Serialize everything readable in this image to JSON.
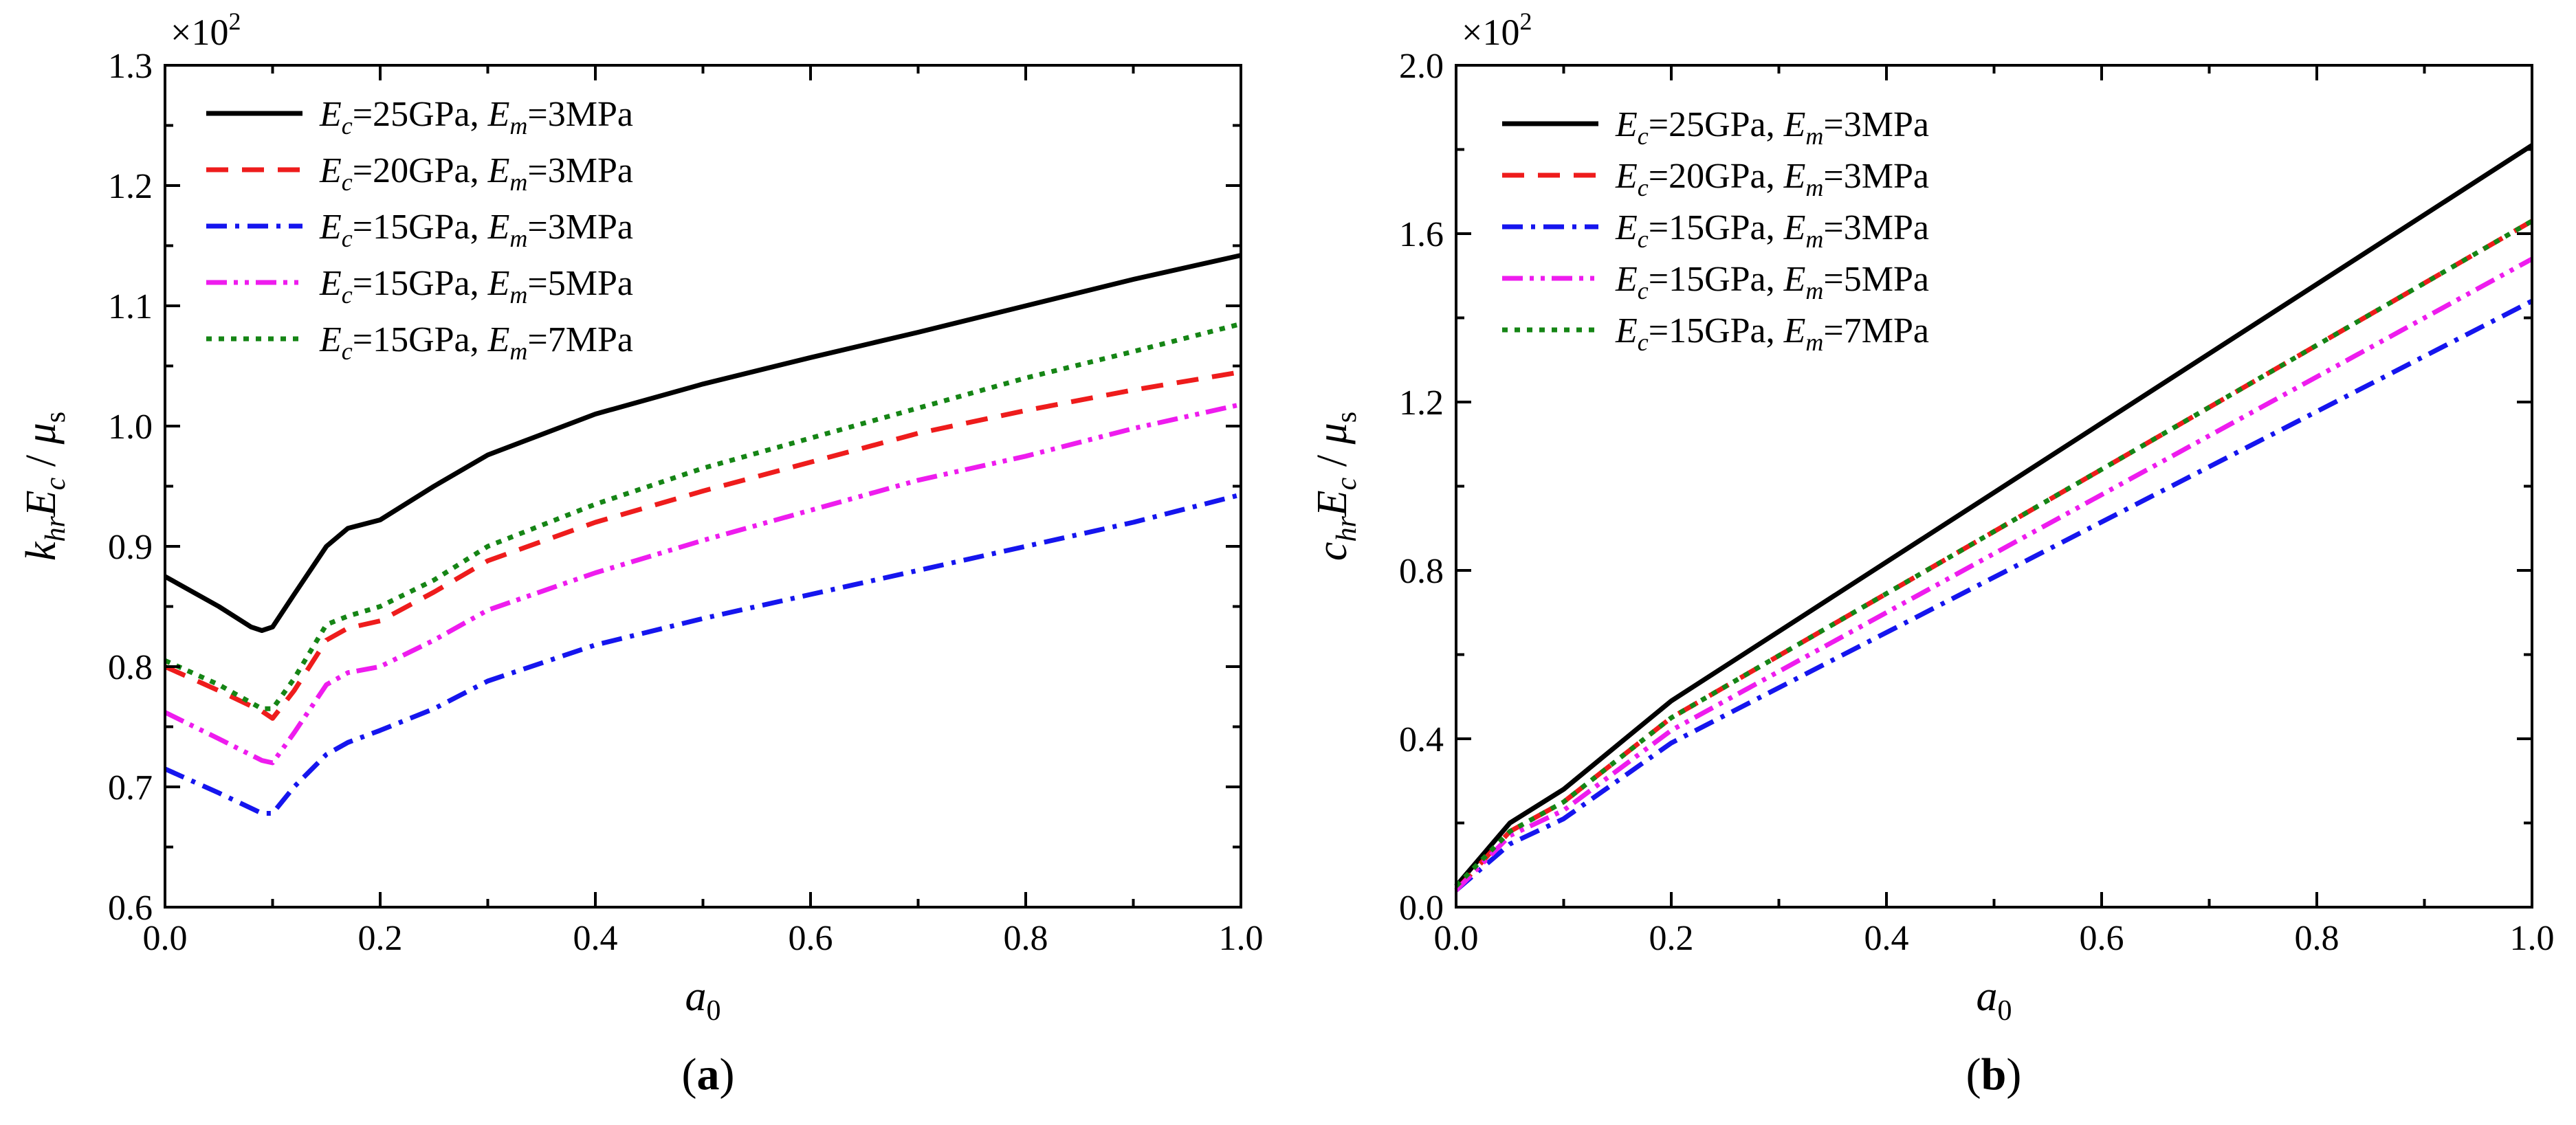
{
  "colors": {
    "black": "#000000",
    "red": "#ee1c1c",
    "blue": "#1515ee",
    "magenta": "#ee1cee",
    "green": "#158515"
  },
  "chart_data": [
    {
      "type": "line",
      "panel": "a",
      "caption": {
        "open": "(",
        "letter": "a",
        "close": ")"
      },
      "multiplier": {
        "base": "×10",
        "exp": "2"
      },
      "ylabel": {
        "k": "k",
        "k_sub": "hr",
        "e": "E",
        "e_sub": "c",
        "slash": " / ",
        "mu": "μ",
        "mu_sub": "s"
      },
      "xlabel": {
        "a": "a",
        "a_sub": "0"
      },
      "xlim": [
        0,
        1
      ],
      "ylim": [
        0.6,
        1.3
      ],
      "xticks": [
        0.0,
        0.2,
        0.4,
        0.6,
        0.8,
        1.0
      ],
      "xtick_labels": [
        "0.0",
        "0.2",
        "0.4",
        "0.6",
        "0.8",
        "1.0"
      ],
      "yticks": [
        0.6,
        0.7,
        0.8,
        0.9,
        1.0,
        1.1,
        1.2,
        1.3
      ],
      "ytick_labels": [
        "0.6",
        "0.7",
        "0.8",
        "0.9",
        "1.0",
        "1.1",
        "1.2",
        "1.3"
      ],
      "legend_position": "top-left",
      "series": [
        {
          "ec": "25GPa",
          "em": "3MPa",
          "color": "#000000",
          "dash": "",
          "x": [
            0,
            0.05,
            0.08,
            0.09,
            0.1,
            0.12,
            0.15,
            0.17,
            0.2,
            0.25,
            0.3,
            0.4,
            0.5,
            0.6,
            0.7,
            0.8,
            0.9,
            1.0
          ],
          "y": [
            0.875,
            0.85,
            0.833,
            0.83,
            0.833,
            0.86,
            0.9,
            0.915,
            0.922,
            0.95,
            0.976,
            1.01,
            1.035,
            1.057,
            1.078,
            1.1,
            1.122,
            1.142
          ]
        },
        {
          "ec": "20GPa",
          "em": "3MPa",
          "color": "#ee1c1c",
          "dash": "32 20",
          "x": [
            0,
            0.05,
            0.09,
            0.1,
            0.12,
            0.15,
            0.17,
            0.2,
            0.25,
            0.3,
            0.4,
            0.5,
            0.6,
            0.7,
            0.8,
            0.9,
            1.0
          ],
          "y": [
            0.8,
            0.78,
            0.763,
            0.757,
            0.78,
            0.822,
            0.832,
            0.838,
            0.862,
            0.888,
            0.92,
            0.946,
            0.97,
            0.994,
            1.013,
            1.03,
            1.045
          ]
        },
        {
          "ec": "15GPa",
          "em": "3MPa",
          "color": "#1515ee",
          "dash": "30 12 6 12",
          "x": [
            0,
            0.05,
            0.09,
            0.1,
            0.12,
            0.15,
            0.17,
            0.2,
            0.25,
            0.3,
            0.4,
            0.5,
            0.6,
            0.7,
            0.8,
            0.9,
            1.0
          ],
          "y": [
            0.715,
            0.695,
            0.678,
            0.678,
            0.7,
            0.727,
            0.737,
            0.747,
            0.765,
            0.788,
            0.818,
            0.84,
            0.86,
            0.88,
            0.9,
            0.92,
            0.943
          ]
        },
        {
          "ec": "15GPa",
          "em": "5MPa",
          "color": "#ee1cee",
          "dash": "30 10 6 10 6 10",
          "x": [
            0,
            0.05,
            0.09,
            0.1,
            0.12,
            0.15,
            0.17,
            0.2,
            0.25,
            0.3,
            0.4,
            0.5,
            0.6,
            0.7,
            0.8,
            0.9,
            1.0
          ],
          "y": [
            0.762,
            0.74,
            0.722,
            0.72,
            0.745,
            0.785,
            0.795,
            0.8,
            0.822,
            0.847,
            0.878,
            0.905,
            0.93,
            0.955,
            0.975,
            0.998,
            1.018
          ]
        },
        {
          "ec": "15GPa",
          "em": "7MPa",
          "color": "#158515",
          "dash": "8 10",
          "x": [
            0,
            0.05,
            0.09,
            0.1,
            0.12,
            0.15,
            0.17,
            0.2,
            0.25,
            0.3,
            0.4,
            0.5,
            0.6,
            0.7,
            0.8,
            0.9,
            1.0
          ],
          "y": [
            0.805,
            0.785,
            0.765,
            0.765,
            0.79,
            0.835,
            0.842,
            0.85,
            0.872,
            0.9,
            0.935,
            0.965,
            0.99,
            1.015,
            1.04,
            1.062,
            1.085
          ]
        }
      ]
    },
    {
      "type": "line",
      "panel": "b",
      "caption": {
        "open": "(",
        "letter": "b",
        "close": ")"
      },
      "multiplier": {
        "base": "×10",
        "exp": "2"
      },
      "ylabel": {
        "k": "c",
        "k_sub": "hr",
        "e": "E",
        "e_sub": "c",
        "slash": " / ",
        "mu": "μ",
        "mu_sub": "s"
      },
      "xlabel": {
        "a": "a",
        "a_sub": "0"
      },
      "xlim": [
        0,
        1
      ],
      "ylim": [
        0,
        2.0
      ],
      "xticks": [
        0.0,
        0.2,
        0.4,
        0.6,
        0.8,
        1.0
      ],
      "xtick_labels": [
        "0.0",
        "0.2",
        "0.4",
        "0.6",
        "0.8",
        "1.0"
      ],
      "yticks": [
        0.0,
        0.4,
        0.8,
        1.2,
        1.6,
        2.0
      ],
      "ytick_labels": [
        "0.0",
        "0.4",
        "0.8",
        "1.2",
        "1.6",
        "2.0"
      ],
      "legend_position": "top-left",
      "series": [
        {
          "ec": "25GPa",
          "em": "3MPa",
          "color": "#000000",
          "dash": "",
          "x": [
            0,
            0.05,
            0.1,
            0.2,
            1.0
          ],
          "y": [
            0.05,
            0.2,
            0.28,
            0.49,
            1.81
          ]
        },
        {
          "ec": "20GPa",
          "em": "3MPa",
          "color": "#ee1c1c",
          "dash": "32 20",
          "x": [
            0,
            0.05,
            0.1,
            0.2,
            1.0
          ],
          "y": [
            0.04,
            0.18,
            0.25,
            0.45,
            1.63
          ]
        },
        {
          "ec": "15GPa",
          "em": "3MPa",
          "color": "#1515ee",
          "dash": "30 12 6 12",
          "x": [
            0,
            0.05,
            0.1,
            0.2,
            1.0
          ],
          "y": [
            0.04,
            0.15,
            0.21,
            0.39,
            1.44
          ]
        },
        {
          "ec": "15GPa",
          "em": "5MPa",
          "color": "#ee1cee",
          "dash": "30 10 6 10 6 10",
          "x": [
            0,
            0.05,
            0.1,
            0.2,
            1.0
          ],
          "y": [
            0.04,
            0.17,
            0.23,
            0.42,
            1.54
          ]
        },
        {
          "ec": "15GPa",
          "em": "7MPa",
          "color": "#158515",
          "dash": "8 10",
          "x": [
            0,
            0.05,
            0.1,
            0.2,
            1.0
          ],
          "y": [
            0.05,
            0.18,
            0.25,
            0.45,
            1.63
          ]
        }
      ]
    }
  ]
}
